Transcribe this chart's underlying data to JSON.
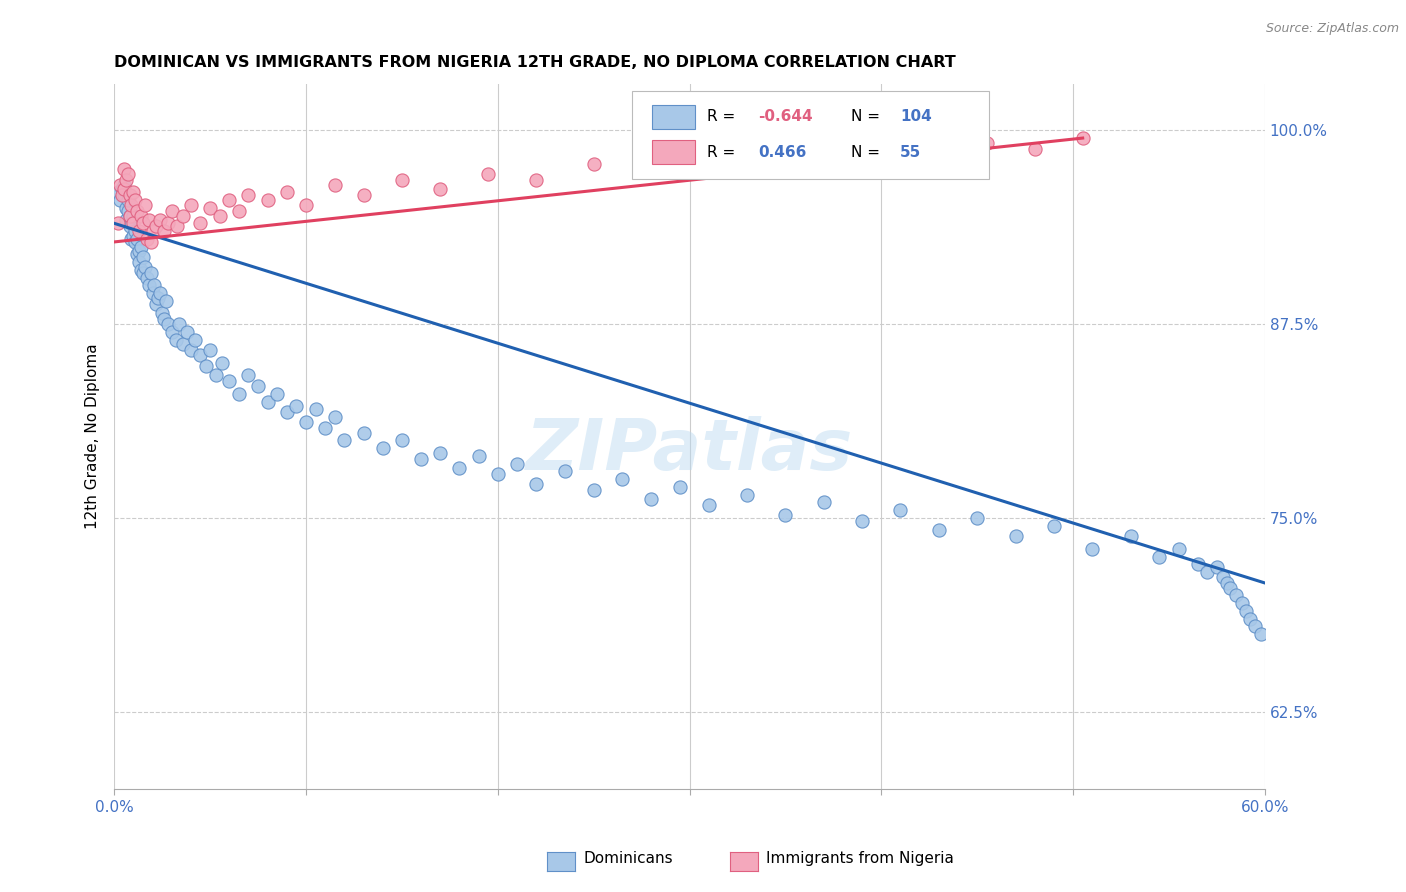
{
  "title": "DOMINICAN VS IMMIGRANTS FROM NIGERIA 12TH GRADE, NO DIPLOMA CORRELATION CHART",
  "source": "Source: ZipAtlas.com",
  "ylabel": "12th Grade, No Diploma",
  "xlim": [
    0.0,
    0.6
  ],
  "ylim": [
    0.575,
    1.03
  ],
  "xtick_positions": [
    0.0,
    0.1,
    0.2,
    0.3,
    0.4,
    0.5,
    0.6
  ],
  "xticklabels_show": [
    "0.0%",
    "60.0%"
  ],
  "yticks_right": [
    0.625,
    0.75,
    0.875,
    1.0
  ],
  "ytick_right_labels": [
    "62.5%",
    "75.0%",
    "87.5%",
    "100.0%"
  ],
  "blue_r": -0.644,
  "blue_n": 104,
  "pink_r": 0.466,
  "pink_n": 55,
  "blue_color": "#a8c8e8",
  "pink_color": "#f4a8bc",
  "blue_edge_color": "#6090c8",
  "pink_edge_color": "#e06080",
  "blue_line_color": "#2060b0",
  "pink_line_color": "#e04060",
  "axis_color": "#4472c4",
  "watermark": "ZIPatlas",
  "blue_scatter_x": [
    0.002,
    0.003,
    0.004,
    0.005,
    0.005,
    0.006,
    0.006,
    0.007,
    0.007,
    0.008,
    0.008,
    0.009,
    0.009,
    0.01,
    0.01,
    0.011,
    0.011,
    0.012,
    0.012,
    0.013,
    0.013,
    0.014,
    0.014,
    0.015,
    0.015,
    0.016,
    0.017,
    0.018,
    0.019,
    0.02,
    0.021,
    0.022,
    0.023,
    0.024,
    0.025,
    0.026,
    0.027,
    0.028,
    0.03,
    0.032,
    0.034,
    0.036,
    0.038,
    0.04,
    0.042,
    0.045,
    0.048,
    0.05,
    0.053,
    0.056,
    0.06,
    0.065,
    0.07,
    0.075,
    0.08,
    0.085,
    0.09,
    0.095,
    0.1,
    0.105,
    0.11,
    0.115,
    0.12,
    0.13,
    0.14,
    0.15,
    0.16,
    0.17,
    0.18,
    0.19,
    0.2,
    0.21,
    0.22,
    0.235,
    0.25,
    0.265,
    0.28,
    0.295,
    0.31,
    0.33,
    0.35,
    0.37,
    0.39,
    0.41,
    0.43,
    0.45,
    0.47,
    0.49,
    0.51,
    0.53,
    0.545,
    0.555,
    0.565,
    0.57,
    0.575,
    0.578,
    0.58,
    0.582,
    0.585,
    0.588,
    0.59,
    0.592,
    0.595,
    0.598
  ],
  "blue_scatter_y": [
    0.96,
    0.955,
    0.962,
    0.958,
    0.965,
    0.95,
    0.942,
    0.948,
    0.955,
    0.938,
    0.945,
    0.93,
    0.94,
    0.932,
    0.945,
    0.928,
    0.935,
    0.92,
    0.93,
    0.922,
    0.915,
    0.925,
    0.91,
    0.918,
    0.908,
    0.912,
    0.905,
    0.9,
    0.908,
    0.895,
    0.9,
    0.888,
    0.892,
    0.895,
    0.882,
    0.878,
    0.89,
    0.875,
    0.87,
    0.865,
    0.875,
    0.862,
    0.87,
    0.858,
    0.865,
    0.855,
    0.848,
    0.858,
    0.842,
    0.85,
    0.838,
    0.83,
    0.842,
    0.835,
    0.825,
    0.83,
    0.818,
    0.822,
    0.812,
    0.82,
    0.808,
    0.815,
    0.8,
    0.805,
    0.795,
    0.8,
    0.788,
    0.792,
    0.782,
    0.79,
    0.778,
    0.785,
    0.772,
    0.78,
    0.768,
    0.775,
    0.762,
    0.77,
    0.758,
    0.765,
    0.752,
    0.76,
    0.748,
    0.755,
    0.742,
    0.75,
    0.738,
    0.745,
    0.73,
    0.738,
    0.725,
    0.73,
    0.72,
    0.715,
    0.718,
    0.712,
    0.708,
    0.705,
    0.7,
    0.695,
    0.69,
    0.685,
    0.68,
    0.675
  ],
  "pink_scatter_x": [
    0.002,
    0.003,
    0.004,
    0.005,
    0.005,
    0.006,
    0.007,
    0.008,
    0.008,
    0.009,
    0.01,
    0.01,
    0.011,
    0.012,
    0.013,
    0.014,
    0.015,
    0.016,
    0.017,
    0.018,
    0.019,
    0.02,
    0.022,
    0.024,
    0.026,
    0.028,
    0.03,
    0.033,
    0.036,
    0.04,
    0.045,
    0.05,
    0.055,
    0.06,
    0.065,
    0.07,
    0.08,
    0.09,
    0.1,
    0.115,
    0.13,
    0.15,
    0.17,
    0.195,
    0.22,
    0.25,
    0.28,
    0.31,
    0.34,
    0.37,
    0.4,
    0.43,
    0.455,
    0.48,
    0.505
  ],
  "pink_scatter_y": [
    0.94,
    0.965,
    0.958,
    0.962,
    0.975,
    0.968,
    0.972,
    0.958,
    0.945,
    0.952,
    0.96,
    0.94,
    0.955,
    0.948,
    0.935,
    0.945,
    0.94,
    0.952,
    0.93,
    0.942,
    0.928,
    0.935,
    0.938,
    0.942,
    0.935,
    0.94,
    0.948,
    0.938,
    0.945,
    0.952,
    0.94,
    0.95,
    0.945,
    0.955,
    0.948,
    0.958,
    0.955,
    0.96,
    0.952,
    0.965,
    0.958,
    0.968,
    0.962,
    0.972,
    0.968,
    0.978,
    0.975,
    0.982,
    0.985,
    0.988,
    0.99,
    0.985,
    0.992,
    0.988,
    0.995
  ],
  "blue_trendline_x": [
    0.0,
    0.6
  ],
  "blue_trendline_y": [
    0.94,
    0.708
  ],
  "pink_trendline_x": [
    0.0,
    0.505
  ],
  "pink_trendline_y": [
    0.928,
    0.995
  ]
}
